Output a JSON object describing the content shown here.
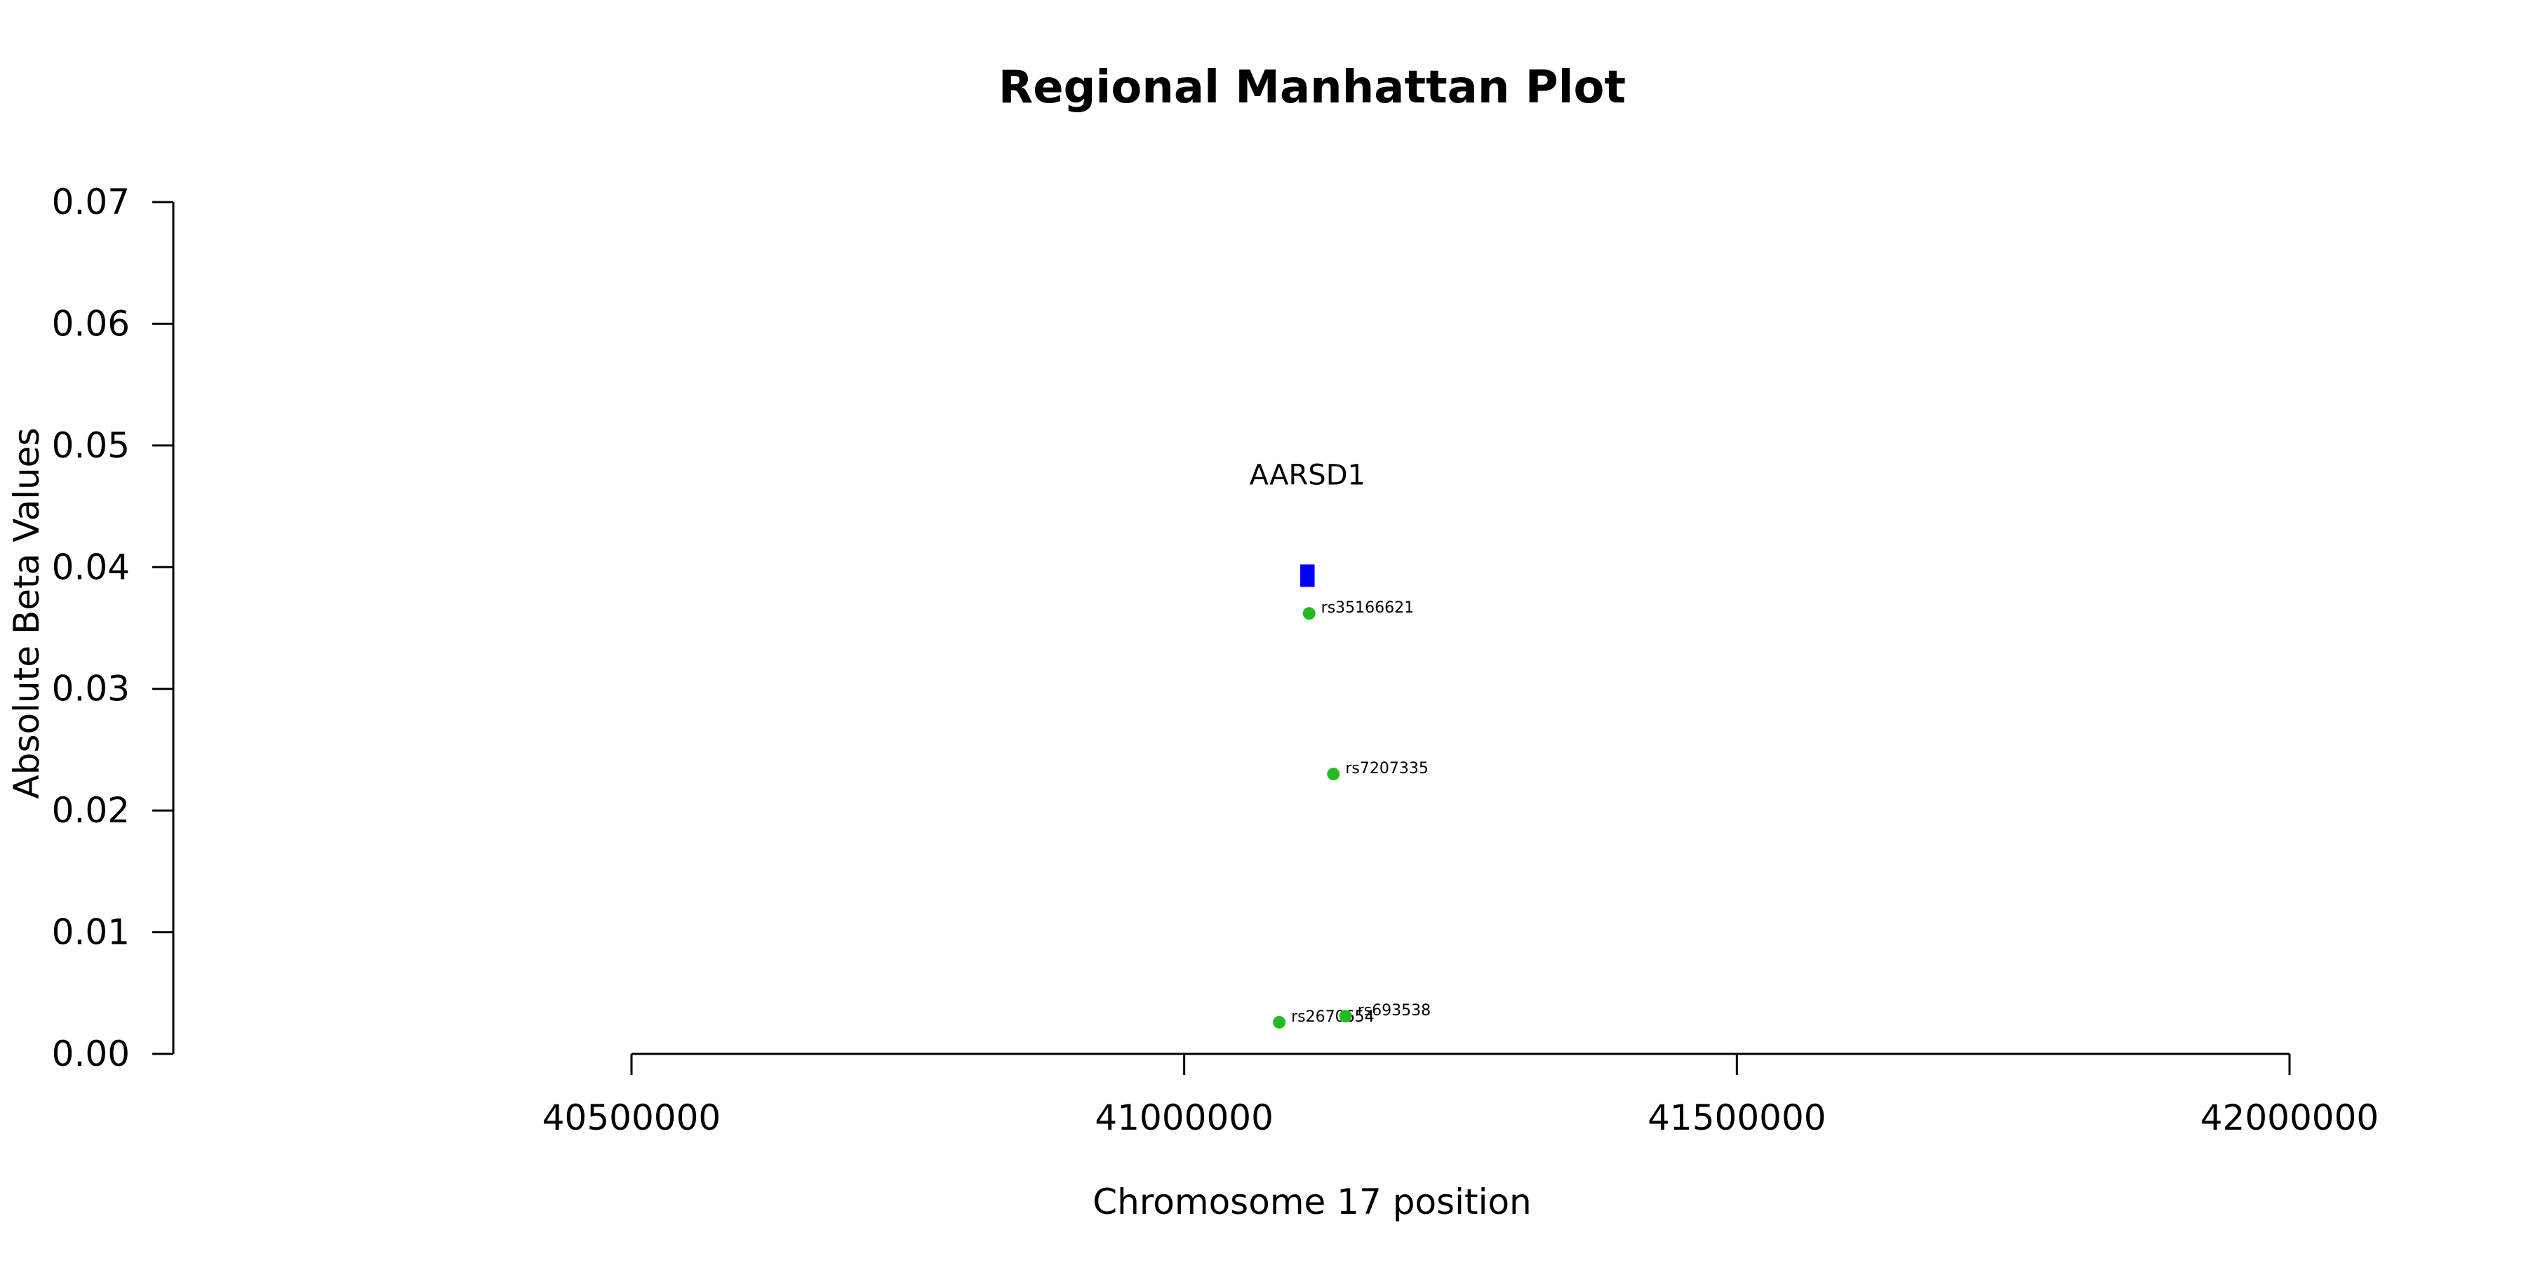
{
  "chart_data": {
    "type": "scatter",
    "title": "Regional Manhattan Plot",
    "xlabel": "Chromosome 17 position",
    "ylabel": "Absolute Beta Values",
    "xlim": [
      40500000,
      42000000
    ],
    "ylim": [
      0,
      0.07
    ],
    "x_ticks": [
      40500000,
      41000000,
      41500000,
      42000000
    ],
    "y_ticks": [
      0.0,
      0.01,
      0.02,
      0.03,
      0.04,
      0.05,
      0.06,
      0.07
    ],
    "y_tick_labels": [
      "0.00",
      "0.01",
      "0.02",
      "0.03",
      "0.04",
      "0.05",
      "0.06",
      "0.07"
    ],
    "grid": false,
    "colors": {
      "snp": "#22bb22",
      "gene": "#0000ff"
    },
    "gene": {
      "name": "AARSD1",
      "x_start": 41105000,
      "x_end": 41118000,
      "y": 0.0393
    },
    "points": [
      {
        "label": "rs35166621",
        "x": 41113000,
        "y": 0.0362
      },
      {
        "label": "rs7207335",
        "x": 41135000,
        "y": 0.023
      },
      {
        "label": "rs2670654",
        "x": 41086000,
        "y": 0.0026
      },
      {
        "label": "rs693538",
        "x": 41146000,
        "y": 0.0031
      }
    ]
  }
}
